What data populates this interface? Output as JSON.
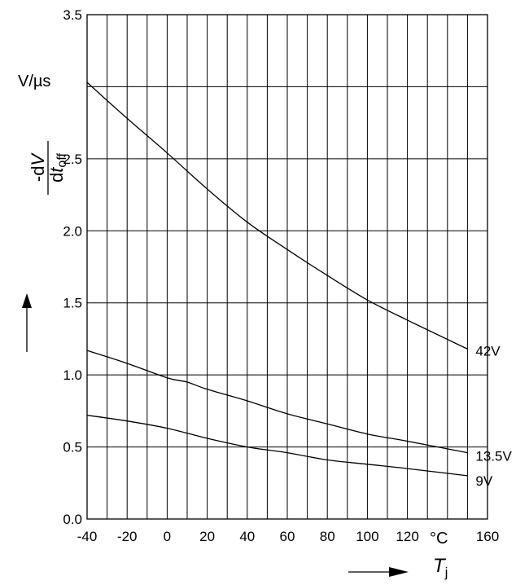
{
  "chart_data": {
    "type": "line",
    "xlim": [
      -40,
      160
    ],
    "ylim": [
      0.0,
      3.5
    ],
    "x_grid_step": 10,
    "y_grid_step": 0.5,
    "grid": true,
    "x_tick_labels": [
      "-40",
      "-20",
      "0",
      "20",
      "40",
      "60",
      "80",
      "100",
      "120",
      "160"
    ],
    "x_tick_values": [
      -40,
      -20,
      0,
      20,
      40,
      60,
      80,
      100,
      120,
      160
    ],
    "x_unit": "°C",
    "y_tick_labels": [
      "0.0",
      "0.5",
      "1.0",
      "1.5",
      "2.0",
      "2.5",
      "3.5"
    ],
    "y_tick_values": [
      0.0,
      0.5,
      1.0,
      1.5,
      2.0,
      2.5,
      3.5
    ],
    "y_unit": "V/µs",
    "ylabel": {
      "prefix": "-d",
      "num_var": "V",
      "den_prefix": "d",
      "den_var": "t",
      "den_sub": "off"
    },
    "xlabel": {
      "var": "T",
      "sub": "j"
    },
    "series": [
      {
        "name": "42V",
        "x": [
          -40,
          -20,
          0,
          20,
          40,
          60,
          80,
          100,
          120,
          150
        ],
        "y": [
          3.03,
          2.78,
          2.54,
          2.29,
          2.06,
          1.87,
          1.69,
          1.52,
          1.38,
          1.18
        ]
      },
      {
        "name": "13.5V",
        "x": [
          -40,
          -20,
          0,
          10,
          20,
          40,
          60,
          80,
          100,
          120,
          150
        ],
        "y": [
          1.17,
          1.08,
          0.98,
          0.95,
          0.9,
          0.82,
          0.73,
          0.66,
          0.59,
          0.54,
          0.46
        ]
      },
      {
        "name": "9V",
        "x": [
          -40,
          -20,
          0,
          20,
          40,
          60,
          80,
          100,
          120,
          150
        ],
        "y": [
          0.72,
          0.68,
          0.63,
          0.56,
          0.5,
          0.46,
          0.41,
          0.38,
          0.35,
          0.3
        ]
      }
    ]
  }
}
